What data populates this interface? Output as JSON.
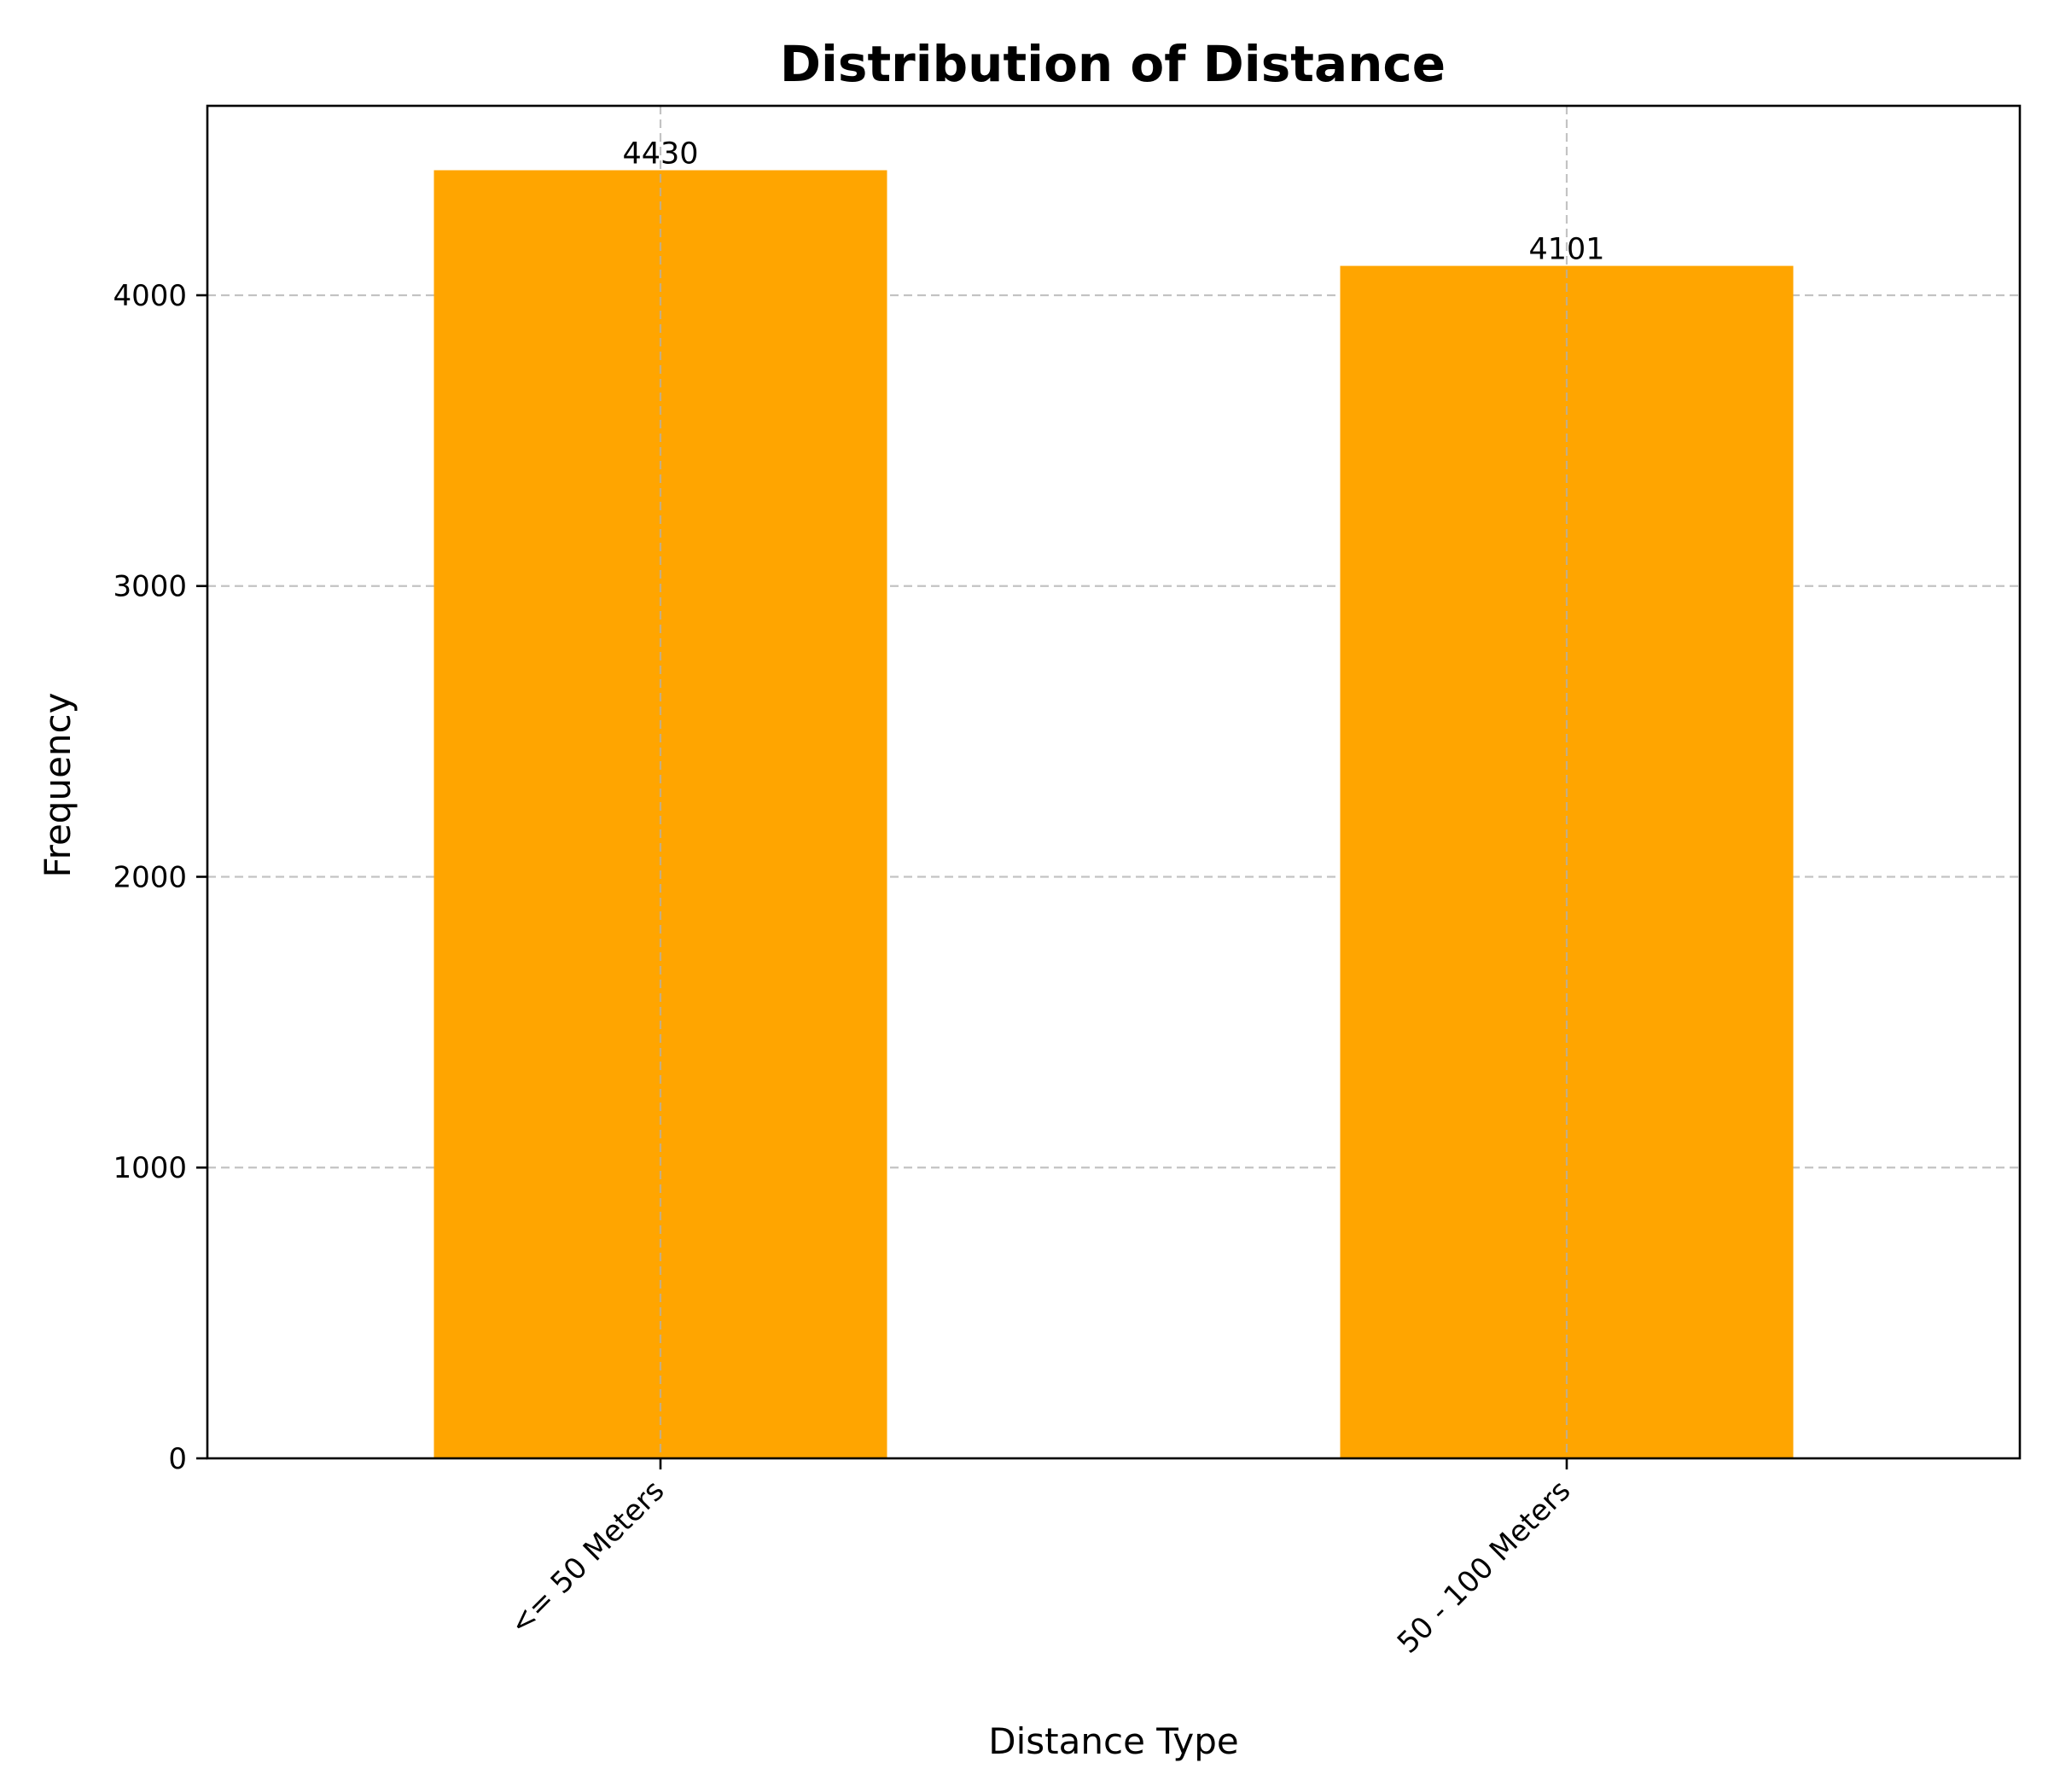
{
  "chart_data": {
    "type": "bar",
    "title": "Distribution of Distance",
    "xlabel": "Distance Type",
    "ylabel": "Frequency",
    "categories": [
      "<= 50 Meters",
      "50 - 100 Meters"
    ],
    "values": [
      4430,
      4101
    ],
    "data_labels": [
      "4430",
      "4101"
    ],
    "y_ticks": [
      0,
      1000,
      2000,
      3000,
      4000
    ],
    "y_tick_labels": [
      "0",
      "1000",
      "2000",
      "3000",
      "4000"
    ],
    "ylim": [
      0,
      4651.5
    ],
    "grid": true,
    "bar_color": "#FFA500",
    "x_tick_rotation_degrees": 45
  }
}
